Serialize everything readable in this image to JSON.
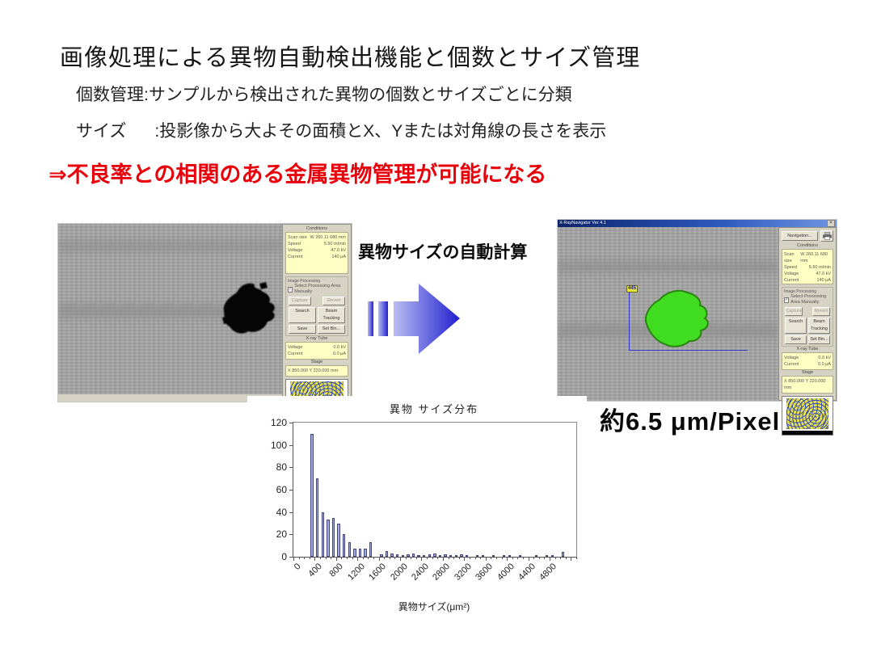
{
  "page": {
    "title": "画像処理による異物自動検出機能と個数とサイズ管理",
    "bullet_count": "個数管理:サンプルから検出された異物の個数とサイズごとに分類",
    "bullet_size": "サイズ      :投影像から大よその面積とX、Yまたは対角線の長さを表示",
    "highlight": "⇒不良率との相関のある金属異物管理が可能になる",
    "arrow_label": "異物サイズの自動計算",
    "scale_note": "約6.5 μm/Pixel"
  },
  "colors": {
    "highlight_red": "#e8000a",
    "arrow_from": "#b9bdf0",
    "arrow_to": "#1f1fd0",
    "bar_fill": "#a0aade",
    "bar_border": "#44447e",
    "panel_yellow": "#ffffc4",
    "blob_green": "#3fdc1f",
    "blob_black": "#050505"
  },
  "panel": {
    "conditions_title": "Conditions",
    "conditions_rows": [
      {
        "label": "Scan size",
        "value": "W 260.11  680 mm"
      },
      {
        "label": "Speed",
        "value": "5.60 m/min"
      },
      {
        "label": "Voltage",
        "value": "47.0 kV"
      },
      {
        "label": "Current",
        "value": "140 μA"
      }
    ],
    "improc_title": "Image Processing",
    "improc_checkbox_label": "Select Processing Area Manually",
    "buttons": {
      "capture": "Capture",
      "revert": "Revert",
      "search": "Search",
      "tracking": "Beam Tracking",
      "save": "Save",
      "set_bin": "Set Bin..."
    },
    "tube_title": "X-ray Tube",
    "tube_rows": [
      {
        "label": "Voltage",
        "value": "0.0 kV"
      },
      {
        "label": "Current",
        "value": "0.0 μA"
      }
    ],
    "stage_title": "Stage",
    "stage_row": "X  850.000   Y  220.000 mm",
    "print_sheet_label": "Print Sheet",
    "print_view_label": "View",
    "print_dropdown_value": "1"
  },
  "right_app": {
    "window_title": "X-RayNavigator Ver 4.1",
    "navigation_button": "Navigation...",
    "close_button": "×",
    "blob_size_label": "445"
  },
  "chart_data": {
    "type": "bar",
    "title": "異物 サイズ分布",
    "xlabel": "異物サイズ(μm²)",
    "ylabel": "",
    "x_bin_width": 100,
    "x_range": [
      0,
      5300
    ],
    "ylim": [
      0,
      120
    ],
    "y_ticks": [
      0,
      20,
      40,
      60,
      80,
      100,
      120
    ],
    "x_tick_labels": [
      "0",
      "400",
      "800",
      "1200",
      "1600",
      "2000",
      "2400",
      "2800",
      "3200",
      "3600",
      "4000",
      "4400",
      "4800"
    ],
    "x_tick_label_interval": 400,
    "grid": false,
    "legend": "none",
    "values": [
      0,
      0,
      0,
      110,
      70,
      40,
      33,
      35,
      30,
      20,
      13,
      7,
      7,
      7,
      13,
      0,
      2,
      5,
      3,
      2,
      1,
      2,
      3,
      1,
      1,
      2,
      3,
      1,
      2,
      1,
      1,
      2,
      1,
      0,
      1,
      1,
      0,
      1,
      0,
      1,
      1,
      0,
      1,
      0,
      0,
      1,
      0,
      1,
      1,
      0,
      4,
      0,
      0
    ]
  }
}
